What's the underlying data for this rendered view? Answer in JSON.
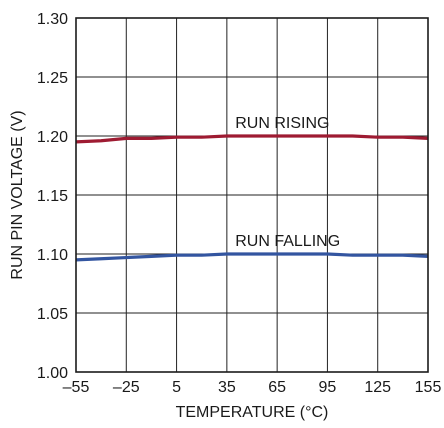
{
  "chart_data": {
    "type": "line",
    "title": "",
    "xlabel": "TEMPERATURE (°C)",
    "ylabel": "RUN PIN VOLTAGE (V)",
    "xlim": [
      -55,
      155
    ],
    "ylim": [
      1.0,
      1.3
    ],
    "x_ticks": [
      -55,
      -25,
      5,
      35,
      65,
      95,
      125,
      155
    ],
    "x_tick_labels": [
      "–55",
      "–25",
      "5",
      "35",
      "65",
      "95",
      "125",
      "155"
    ],
    "y_ticks": [
      1.0,
      1.05,
      1.1,
      1.15,
      1.2,
      1.25,
      1.3
    ],
    "y_tick_labels": [
      "1.00",
      "1.05",
      "1.10",
      "1.15",
      "1.20",
      "1.25",
      "1.30"
    ],
    "grid": true,
    "legend": "none",
    "series": [
      {
        "name": "RUN RISING",
        "color": "#9e1b32",
        "x": [
          -55,
          -40,
          -25,
          -10,
          5,
          20,
          35,
          50,
          65,
          80,
          95,
          110,
          125,
          140,
          155
        ],
        "values": [
          1.195,
          1.196,
          1.198,
          1.198,
          1.199,
          1.199,
          1.2,
          1.2,
          1.2,
          1.2,
          1.2,
          1.2,
          1.199,
          1.199,
          1.198
        ]
      },
      {
        "name": "RUN FALLING",
        "color": "#3355a0",
        "x": [
          -55,
          -40,
          -25,
          -10,
          5,
          20,
          35,
          50,
          65,
          80,
          95,
          110,
          125,
          140,
          155
        ],
        "values": [
          1.095,
          1.096,
          1.097,
          1.098,
          1.099,
          1.099,
          1.1,
          1.1,
          1.1,
          1.1,
          1.1,
          1.099,
          1.099,
          1.099,
          1.098
        ]
      }
    ],
    "annotations": [
      {
        "text": "RUN RISING",
        "series": 0,
        "x": 40
      },
      {
        "text": "RUN FALLING",
        "series": 1,
        "x": 40
      }
    ]
  }
}
